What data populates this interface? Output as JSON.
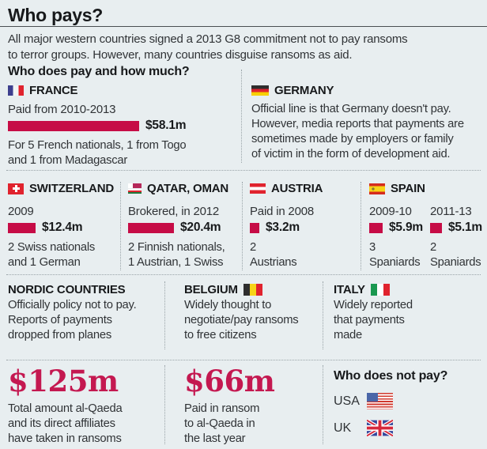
{
  "title": "Who pays?",
  "intro": "All major western countries signed a 2013 G8 commitment not to pay ransoms\nto terror groups. However, many countries disguise ransoms as aid.",
  "section_heading": "Who does pay and how much?",
  "colors": {
    "accent": "#c60c46",
    "bignum": "#c41850",
    "background": "#e8eef0"
  },
  "france": {
    "name": "FRANCE",
    "period": "Paid from 2010-2013",
    "amount": "$58.1m",
    "value": 58.1,
    "note": "For 5 French nationals, 1 from Togo\nand 1 from Madagascar"
  },
  "germany": {
    "name": "GERMANY",
    "note": "Official line is that Germany doesn't pay.\nHowever, media reports that payments are\nsometimes made by employers or family\nof victim in the form of development aid."
  },
  "switzerland": {
    "name": "SWITZERLAND",
    "period": "2009",
    "amount": "$12.4m",
    "value": 12.4,
    "note": "2 Swiss nationals\nand 1 German"
  },
  "qatar_oman": {
    "name": "QATAR, OMAN",
    "period": "Brokered, in 2012",
    "amount": "$20.4m",
    "value": 20.4,
    "note": "2 Finnish nationals,\n1 Austrian, 1 Swiss"
  },
  "austria": {
    "name": "AUSTRIA",
    "period": "Paid in 2008",
    "amount": "$3.2m",
    "value": 3.2,
    "note": "2\nAustrians"
  },
  "spain": {
    "name": "SPAIN",
    "entries": [
      {
        "period": "2009-10",
        "amount": "$5.9m",
        "value": 5.9,
        "note": "3\nSpaniards"
      },
      {
        "period": "2011-13",
        "amount": "$5.1m",
        "value": 5.1,
        "note": "2\nSpaniards"
      }
    ]
  },
  "nordic": {
    "name": "NORDIC COUNTRIES",
    "note": "Officially policy not to pay.\nReports of payments\ndropped from planes"
  },
  "belgium": {
    "name": "BELGIUM",
    "note": "Widely thought to\nnegotiate/pay ransoms\nto free citizens"
  },
  "italy": {
    "name": "ITALY",
    "note": "Widely reported\nthat payments\nmade"
  },
  "totals": [
    {
      "amount": "$125m",
      "note": "Total amount al-Qaeda\nand its direct affiliates\nhave taken in ransoms"
    },
    {
      "amount": "$66m",
      "note": "Paid in ransom\nto al-Qaeda in\nthe last year"
    }
  ],
  "not_pay": {
    "heading": "Who does not pay?",
    "items": [
      "USA",
      "UK"
    ]
  },
  "chart_data": {
    "type": "bar",
    "orientation": "horizontal",
    "title": "Who does pay and how much?",
    "unit": "$m",
    "categories": [
      "France (paid 2010-2013)",
      "Switzerland (2009)",
      "Qatar, Oman (brokered 2012)",
      "Austria (paid 2008)",
      "Spain (2009-10)",
      "Spain (2011-13)"
    ],
    "values": [
      58.1,
      12.4,
      20.4,
      3.2,
      5.9,
      5.1
    ],
    "value_labels": [
      "$58.1m",
      "$12.4m",
      "$20.4m",
      "$3.2m",
      "$5.9m",
      "$5.1m"
    ],
    "bar_color": "#c60c46",
    "annotations": [
      "$125m — Total amount al-Qaeda and its direct affiliates have taken in ransoms",
      "$66m — Paid in ransom to al-Qaeda in the last year"
    ]
  }
}
